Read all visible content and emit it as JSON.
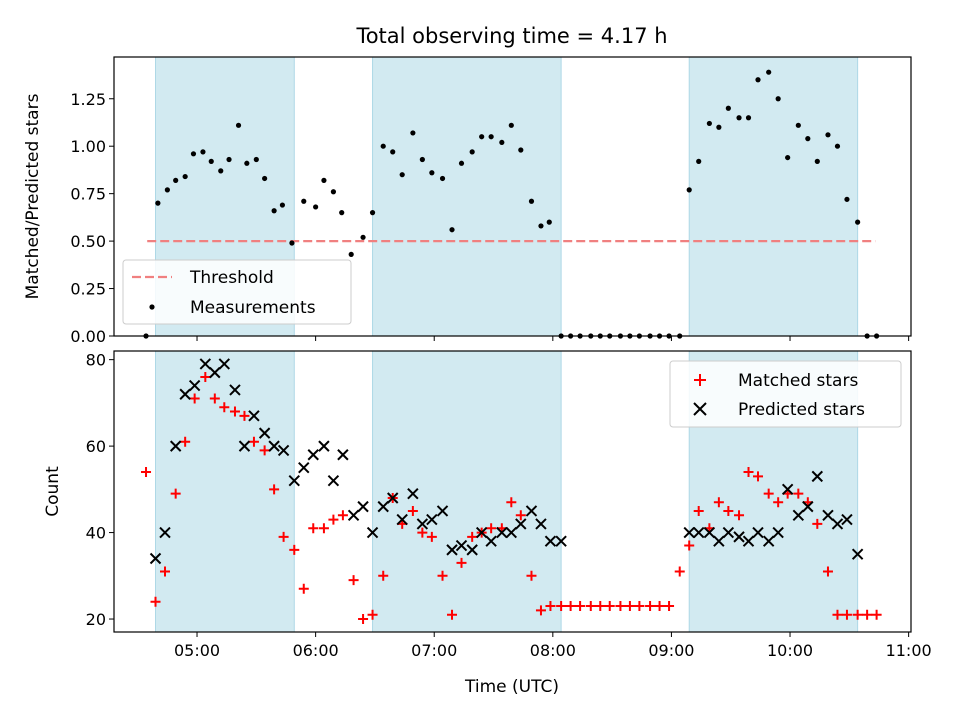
{
  "figure": {
    "title": "Total observing time = 4.17 h",
    "xlabel": "Time (UTC)",
    "xticks": [
      {
        "t": 5.0,
        "label": "05:00"
      },
      {
        "t": 6.0,
        "label": "06:00"
      },
      {
        "t": 7.0,
        "label": "07:00"
      },
      {
        "t": 8.0,
        "label": "08:00"
      },
      {
        "t": 9.0,
        "label": "09:00"
      },
      {
        "t": 10.0,
        "label": "10:00"
      },
      {
        "t": 11.0,
        "label": "11:00"
      }
    ],
    "xlim": [
      4.3,
      11.02
    ],
    "shaded_intervals": [
      [
        4.65,
        5.82
      ],
      [
        6.48,
        8.07
      ],
      [
        9.15,
        10.57
      ]
    ],
    "shade_color": "#add8e6"
  },
  "chart_data": [
    {
      "type": "scatter",
      "ylabel": "Matched/Predicted stars",
      "ylim": [
        0,
        1.47
      ],
      "yticks": [
        "0.00",
        "0.25",
        "0.50",
        "0.75",
        "1.00",
        "1.25"
      ],
      "threshold": {
        "name": "Threshold",
        "value": 0.5,
        "x_range": [
          4.58,
          10.72
        ],
        "color": "#f08080"
      },
      "legend": {
        "placement": "lower-left",
        "entries": [
          "Threshold",
          "Measurements"
        ]
      },
      "series": [
        {
          "name": "Measurements",
          "color": "#000000",
          "x": [
            4.57,
            4.67,
            4.75,
            4.82,
            4.9,
            4.97,
            5.05,
            5.12,
            5.2,
            5.27,
            5.35,
            5.42,
            5.5,
            5.57,
            5.65,
            5.72,
            5.8,
            5.9,
            6.0,
            6.07,
            6.15,
            6.22,
            6.3,
            6.4,
            6.48,
            6.57,
            6.65,
            6.73,
            6.82,
            6.9,
            6.98,
            7.07,
            7.15,
            7.23,
            7.32,
            7.4,
            7.48,
            7.57,
            7.65,
            7.73,
            7.82,
            7.9,
            7.97,
            8.07,
            8.15,
            8.23,
            8.32,
            8.4,
            8.48,
            8.57,
            8.65,
            8.73,
            8.82,
            8.9,
            8.98,
            9.07,
            9.15,
            9.23,
            9.32,
            9.4,
            9.48,
            9.57,
            9.65,
            9.73,
            9.82,
            9.9,
            9.98,
            10.07,
            10.15,
            10.23,
            10.32,
            10.4,
            10.48,
            10.57,
            10.65,
            10.73
          ],
          "values": [
            0.0,
            0.7,
            0.77,
            0.82,
            0.84,
            0.96,
            0.97,
            0.92,
            0.87,
            0.93,
            1.11,
            0.91,
            0.93,
            0.83,
            0.66,
            0.69,
            0.49,
            0.71,
            0.68,
            0.82,
            0.76,
            0.65,
            0.43,
            0.52,
            0.65,
            1.0,
            0.97,
            0.85,
            1.07,
            0.93,
            0.86,
            0.83,
            0.56,
            0.91,
            0.97,
            1.05,
            1.05,
            1.02,
            1.11,
            0.98,
            0.71,
            0.58,
            0.6,
            0.0,
            0.0,
            0.0,
            0.0,
            0.0,
            0.0,
            0.0,
            0.0,
            0.0,
            0.0,
            0.0,
            0.0,
            0.0,
            0.77,
            0.92,
            1.12,
            1.1,
            1.2,
            1.15,
            1.15,
            1.35,
            1.39,
            1.25,
            0.94,
            1.11,
            1.04,
            0.92,
            1.06,
            1.0,
            0.72,
            0.6,
            0.0,
            0.0
          ]
        }
      ]
    },
    {
      "type": "scatter",
      "ylabel": "Count",
      "ylim": [
        17,
        82
      ],
      "yticks": [
        "20",
        "40",
        "60",
        "80"
      ],
      "legend": {
        "placement": "upper-right",
        "entries": [
          "Matched stars",
          "Predicted stars"
        ]
      },
      "series": [
        {
          "name": "Matched stars",
          "marker": "+",
          "color": "#ff0000",
          "x": [
            4.57,
            4.65,
            4.73,
            4.82,
            4.9,
            4.98,
            5.07,
            5.15,
            5.23,
            5.32,
            5.4,
            5.48,
            5.57,
            5.65,
            5.73,
            5.82,
            5.9,
            5.98,
            6.07,
            6.15,
            6.23,
            6.32,
            6.4,
            6.48,
            6.57,
            6.65,
            6.73,
            6.82,
            6.9,
            6.98,
            7.07,
            7.15,
            7.23,
            7.32,
            7.4,
            7.48,
            7.57,
            7.65,
            7.73,
            7.82,
            7.9,
            7.98,
            8.07,
            8.15,
            8.23,
            8.32,
            8.4,
            8.48,
            8.57,
            8.65,
            8.73,
            8.82,
            8.9,
            8.98,
            9.07,
            9.15,
            9.23,
            9.32,
            9.4,
            9.48,
            9.57,
            9.65,
            9.73,
            9.82,
            9.9,
            9.98,
            10.07,
            10.15,
            10.23,
            10.32,
            10.4,
            10.48,
            10.57,
            10.65,
            10.73
          ],
          "values": [
            54,
            24,
            31,
            49,
            61,
            71,
            76,
            71,
            69,
            68,
            67,
            61,
            59,
            50,
            39,
            36,
            27,
            41,
            41,
            43,
            44,
            29,
            20,
            21,
            30,
            48,
            42,
            45,
            40,
            39,
            30,
            21,
            33,
            39,
            40,
            41,
            41,
            47,
            44,
            30,
            22,
            23,
            23,
            23,
            23,
            23,
            23,
            23,
            23,
            23,
            23,
            23,
            23,
            23,
            31,
            37,
            45,
            41,
            47,
            45,
            44,
            54,
            53,
            49,
            47,
            49,
            49,
            47,
            42,
            31,
            21,
            21,
            21,
            21,
            21
          ]
        },
        {
          "name": "Predicted stars",
          "marker": "x",
          "color": "#000000",
          "x": [
            4.65,
            4.73,
            4.82,
            4.9,
            4.98,
            5.07,
            5.15,
            5.23,
            5.32,
            5.4,
            5.48,
            5.57,
            5.65,
            5.73,
            5.82,
            5.9,
            5.98,
            6.07,
            6.15,
            6.23,
            6.32,
            6.4,
            6.48,
            6.57,
            6.65,
            6.73,
            6.82,
            6.9,
            6.98,
            7.07,
            7.15,
            7.23,
            7.32,
            7.4,
            7.48,
            7.57,
            7.65,
            7.73,
            7.82,
            7.9,
            7.98,
            8.07,
            9.15,
            9.23,
            9.32,
            9.4,
            9.48,
            9.57,
            9.65,
            9.73,
            9.82,
            9.9,
            9.98,
            10.07,
            10.15,
            10.23,
            10.32,
            10.4,
            10.48,
            10.57
          ],
          "values": [
            34,
            40,
            60,
            72,
            74,
            79,
            77,
            79,
            73,
            60,
            67,
            63,
            60,
            59,
            52,
            55,
            58,
            60,
            52,
            58,
            44,
            46,
            40,
            46,
            48,
            43,
            49,
            42,
            43,
            45,
            36,
            37,
            36,
            40,
            38,
            40,
            40,
            42,
            45,
            42,
            38,
            38,
            40,
            40,
            40,
            38,
            40,
            39,
            38,
            40,
            38,
            40,
            50,
            44,
            46,
            53,
            44,
            42,
            43,
            35
          ]
        }
      ]
    }
  ]
}
